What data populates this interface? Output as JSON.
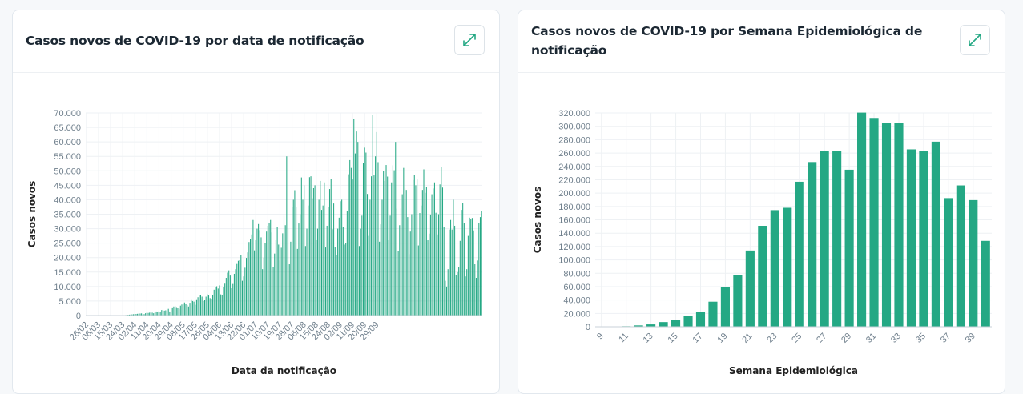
{
  "cards": [
    {
      "title": "Casos novos de COVID-19 por data de notificação",
      "expand_icon": "expand-arrows-icon"
    },
    {
      "title": "Casos novos de COVID-19 por Semana Epidemiológica de notificação",
      "expand_icon": "expand-arrows-icon"
    }
  ],
  "colors": {
    "bar": "#24a884",
    "grid": "#eef1f4",
    "tick": "#6f7f8c"
  },
  "chart_data": [
    {
      "type": "bar",
      "title": "Casos novos de COVID-19 por data de notificação",
      "xlabel": "Data da notificação",
      "ylabel": "Casos novos",
      "ylim": [
        0,
        70000
      ],
      "yticks": [
        "0",
        "5.000",
        "10.000",
        "15.000",
        "20.000",
        "25.000",
        "30.000",
        "35.000",
        "40.000",
        "45.000",
        "50.000",
        "55.000",
        "60.000",
        "65.000",
        "70.000"
      ],
      "x_tick_labels": [
        "26/02",
        "06/03",
        "15/03",
        "24/03",
        "02/04",
        "11/04",
        "20/04",
        "29/04",
        "08/05",
        "17/05",
        "26/05",
        "04/06",
        "13/06",
        "22/06",
        "01/07",
        "10/07",
        "19/07",
        "28/07",
        "06/08",
        "15/08",
        "24/08",
        "02/09",
        "11/09",
        "20/09",
        "29/09"
      ],
      "x_range": [
        "26/02",
        "02/10"
      ],
      "grid": true,
      "legend": "none",
      "values": [
        0,
        0,
        0,
        0,
        0,
        0,
        0,
        0,
        0,
        0,
        0,
        0,
        0,
        0,
        0,
        0,
        0,
        10,
        5,
        30,
        0,
        0,
        20,
        40,
        30,
        50,
        80,
        100,
        120,
        150,
        200,
        250,
        300,
        350,
        400,
        450,
        500,
        550,
        600,
        650,
        700,
        750,
        400,
        500,
        800,
        1000,
        900,
        1000,
        1200,
        1000,
        800,
        1300,
        1400,
        1200,
        1600,
        1200,
        1900,
        2000,
        1700,
        1800,
        2100,
        2300,
        1400,
        2500,
        2800,
        3100,
        3300,
        2900,
        2700,
        2300,
        3400,
        3800,
        4100,
        4500,
        3900,
        3600,
        3100,
        4400,
        5600,
        5000,
        4800,
        3700,
        5600,
        6300,
        7000,
        7200,
        6500,
        5000,
        5300,
        6500,
        7300,
        6900,
        6000,
        5800,
        7200,
        8900,
        9700,
        10100,
        9300,
        10400,
        7300,
        7200,
        9700,
        11000,
        13000,
        14800,
        15600,
        13800,
        9400,
        10900,
        14400,
        16000,
        17800,
        18900,
        19100,
        20800,
        12000,
        13500,
        16500,
        19900,
        21800,
        25400,
        26500,
        28000,
        33000,
        22500,
        26000,
        30000,
        31600,
        29500,
        27000,
        16000,
        20000,
        25000,
        29000,
        31000,
        32000,
        33000,
        28700,
        16800,
        21400,
        26000,
        30500,
        24500,
        19000,
        23400,
        28400,
        34500,
        31200,
        55000,
        30000,
        17700,
        25500,
        37500,
        40000,
        43300,
        37500,
        23000,
        31800,
        35000,
        47700,
        40000,
        45000,
        24000,
        30000,
        38000,
        47800,
        48100,
        40500,
        44000,
        45000,
        26000,
        30000,
        40000,
        46500,
        36500,
        38000,
        46000,
        23500,
        31000,
        37500,
        43700,
        47200,
        29800,
        38700,
        23700,
        21000,
        30000,
        33800,
        39500,
        40000,
        30500,
        24500,
        25000,
        36000,
        48800,
        53700,
        51000,
        47000,
        68000,
        56000,
        63600,
        60000,
        24000,
        30000,
        34500,
        52600,
        58000,
        56300,
        42000,
        27500,
        40000,
        48100,
        69200,
        48400,
        55000,
        63400,
        53000,
        25500,
        31500,
        40000,
        50000,
        46500,
        52000,
        48000,
        26000,
        34500,
        46000,
        51900,
        50200,
        60000,
        36900,
        22400,
        31200,
        37000,
        41900,
        51000,
        43900,
        43400,
        34000,
        21200,
        29000,
        35000,
        46800,
        48600,
        45000,
        47000,
        24200,
        35400,
        38000,
        43400,
        50500,
        42400,
        44400,
        26000,
        28300,
        34900,
        41900,
        43900,
        46000,
        35500,
        28000,
        35000,
        45300,
        51400,
        44200,
        30500,
        12000,
        10000,
        16000,
        29700,
        33000,
        29700,
        40000,
        31000,
        14000,
        15000,
        16600,
        25800,
        36500,
        39000,
        32000,
        13500,
        16000,
        27500,
        33800,
        33200,
        33700,
        29400,
        17700,
        13000,
        19000,
        32000,
        34000,
        36100
      ],
      "note": "values estimated per day from bar heights"
    },
    {
      "type": "bar",
      "title": "Casos novos de COVID-19 por Semana Epidemiológica de notificação",
      "xlabel": "Semana Epidemiológica",
      "ylabel": "Casos novos",
      "ylim": [
        0,
        320000
      ],
      "yticks": [
        "0",
        "20.000",
        "40.000",
        "60.000",
        "80.000",
        "100.000",
        "120.000",
        "140.000",
        "160.000",
        "180.000",
        "200.000",
        "220.000",
        "240.000",
        "260.000",
        "280.000",
        "300.000",
        "320.000"
      ],
      "x_tick_labels": [
        "9",
        "11",
        "13",
        "15",
        "17",
        "19",
        "21",
        "23",
        "25",
        "27",
        "29",
        "31",
        "33",
        "35",
        "37",
        "39"
      ],
      "grid": true,
      "legend": "none",
      "categories": [
        "9",
        "10",
        "11",
        "12",
        "13",
        "14",
        "15",
        "16",
        "17",
        "18",
        "19",
        "20",
        "21",
        "22",
        "23",
        "24",
        "25",
        "26",
        "27",
        "28",
        "29",
        "30",
        "31",
        "32",
        "33",
        "34",
        "35",
        "36",
        "37",
        "38",
        "39",
        "40"
      ],
      "values": [
        0,
        100,
        800,
        2000,
        3500,
        7000,
        10500,
        16000,
        22000,
        37500,
        59500,
        77500,
        114000,
        151000,
        174500,
        178000,
        217000,
        246500,
        263000,
        262500,
        235000,
        320500,
        312500,
        304500,
        304500,
        265500,
        263500,
        277000,
        192500,
        211500,
        189500,
        128500
      ]
    }
  ]
}
